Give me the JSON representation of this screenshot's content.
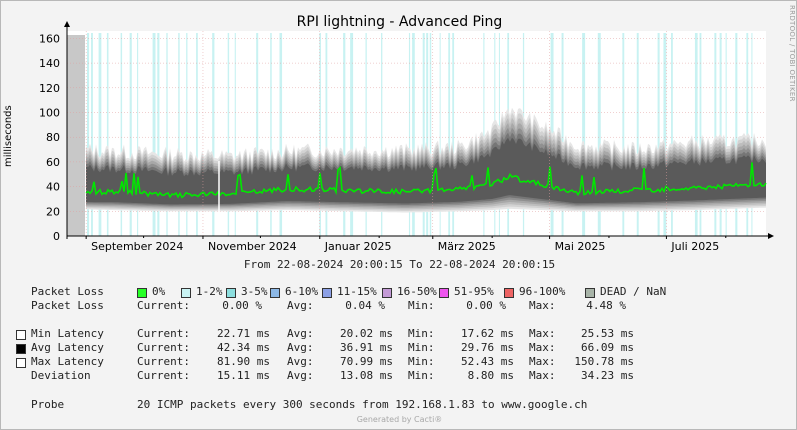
{
  "title": "RPI lightning - Advanced Ping",
  "side_text": "RRDTOOL / TOBI OETIKER",
  "time_range": "From 22-08-2024 20:00:15 To 22-08-2024 20:00:15",
  "chart_data": {
    "type": "area",
    "title": "RPI lightning - Advanced Ping",
    "ylabel": "milliseconds",
    "xlabel": "",
    "ylim": [
      0,
      166
    ],
    "yticks": [
      0,
      20,
      40,
      60,
      80,
      100,
      120,
      140,
      160
    ],
    "xticks": [
      "September 2024",
      "November 2024",
      "Januar 2025",
      "März 2025",
      "Mai 2025",
      "Juli 2025"
    ],
    "grid": true,
    "series": [
      {
        "name": "Avg Latency",
        "color": "#00e800",
        "x": [
          "2024-08-22",
          "2024-09-15",
          "2024-10-15",
          "2024-11-15",
          "2024-12-15",
          "2025-01-15",
          "2025-02-15",
          "2025-03-15",
          "2025-04-01",
          "2025-04-10",
          "2025-05-15",
          "2025-06-15",
          "2025-07-15",
          "2025-08-22"
        ],
        "values": [
          35,
          36,
          33,
          34,
          38,
          37,
          36,
          38,
          42,
          48,
          35,
          37,
          39,
          42
        ]
      },
      {
        "name": "Max Latency",
        "color": "#f0f0f0",
        "x": [
          "2024-08-22",
          "2024-09-15",
          "2024-10-15",
          "2024-11-15",
          "2024-12-15",
          "2025-01-15",
          "2025-02-15",
          "2025-03-15",
          "2025-04-01",
          "2025-04-10",
          "2025-05-15",
          "2025-06-15",
          "2025-07-15",
          "2025-08-22"
        ],
        "values": [
          75,
          72,
          70,
          68,
          72,
          74,
          73,
          76,
          90,
          110,
          78,
          74,
          80,
          82
        ]
      },
      {
        "name": "Min Latency",
        "color": "#f0f0f0",
        "x": [
          "2024-08-22",
          "2024-09-15",
          "2024-10-15",
          "2024-11-15",
          "2024-12-15",
          "2025-01-15",
          "2025-02-15",
          "2025-03-15",
          "2025-04-01",
          "2025-04-10",
          "2025-05-15",
          "2025-06-15",
          "2025-07-15",
          "2025-08-22"
        ],
        "values": [
          22,
          21,
          20,
          20,
          21,
          20,
          19,
          20,
          21,
          22,
          20,
          20,
          21,
          23
        ]
      }
    ]
  },
  "legend": {
    "packet_loss_label": "Packet Loss",
    "items": [
      {
        "label": "0%",
        "color": "#26ff26"
      },
      {
        "label": "1-2%",
        "color": "#c8f2f2"
      },
      {
        "label": "3-5%",
        "color": "#8cdede"
      },
      {
        "label": "6-10%",
        "color": "#8cb8e6"
      },
      {
        "label": "11-15%",
        "color": "#8ca0e6"
      },
      {
        "label": "16-50%",
        "color": "#c39ad6"
      },
      {
        "label": "51-95%",
        "color": "#ee55ee"
      },
      {
        "label": "96-100%",
        "color": "#ee6464"
      },
      {
        "label": "DEAD / NaN",
        "color": "#a8b4a8"
      }
    ]
  },
  "stats": {
    "loss": {
      "label": "Packet Loss",
      "current": "0.00 %",
      "avg": "0.04 %",
      "min": "0.00 %",
      "max": "4.48 %"
    },
    "rows": [
      {
        "label": "Min Latency",
        "swatch": "#ffffff",
        "current": "22.71 ms",
        "avg": "20.02 ms",
        "min": "17.62 ms",
        "max": "25.53 ms"
      },
      {
        "label": "Avg Latency",
        "swatch": "#000000",
        "current": "42.34 ms",
        "avg": "36.91 ms",
        "min": "29.76 ms",
        "max": "66.09 ms"
      },
      {
        "label": "Max Latency",
        "swatch": "#ffffff",
        "current": "81.90 ms",
        "avg": "70.99 ms",
        "min": "52.43 ms",
        "max": "150.78 ms"
      },
      {
        "label": "Deviation",
        "swatch": "",
        "current": "15.11 ms",
        "avg": "13.08 ms",
        "min": "8.80 ms",
        "max": "34.23 ms"
      }
    ],
    "labels": {
      "current": "Current:",
      "avg": "Avg:",
      "min": "Min:",
      "max": "Max:"
    }
  },
  "probe": {
    "label": "Probe",
    "text": "20 ICMP packets every 300 seconds from 192.168.1.83 to www.google.ch"
  },
  "footer": "Generated by Cacti®"
}
